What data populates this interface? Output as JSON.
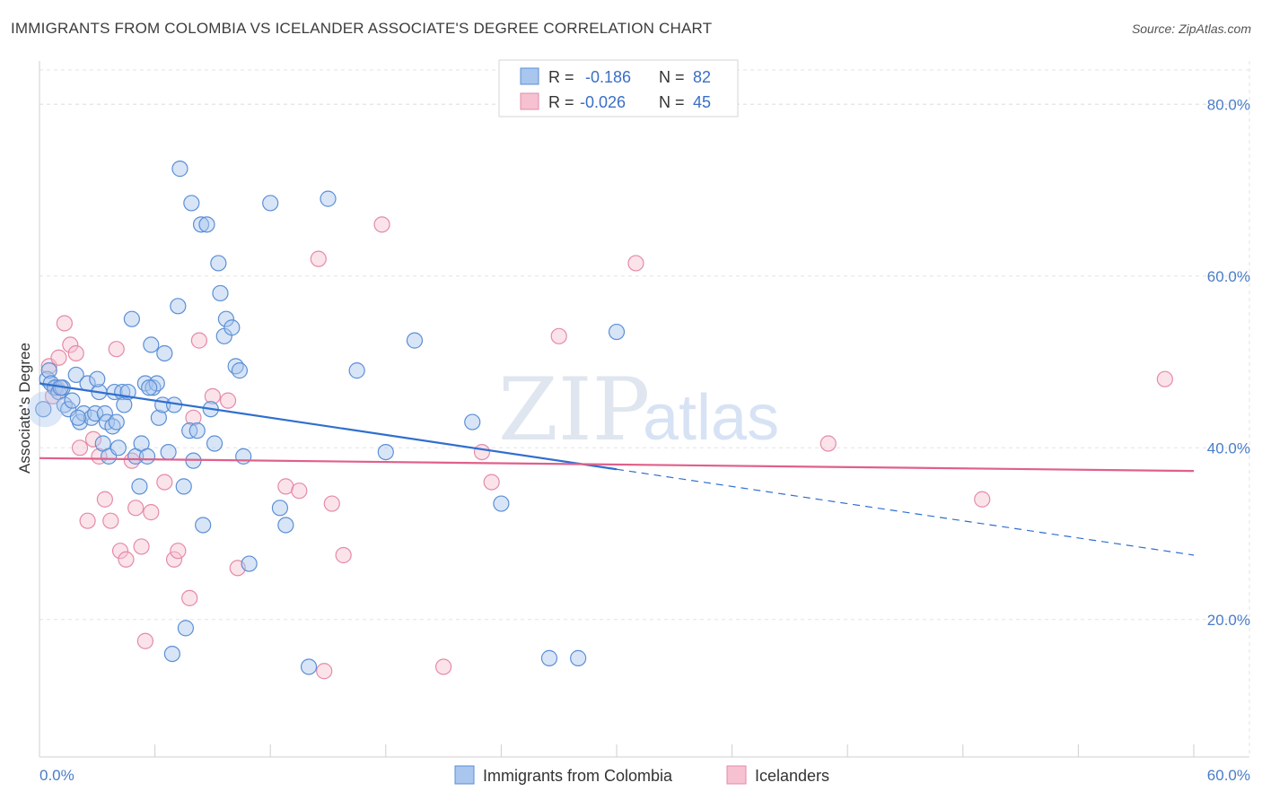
{
  "header": {
    "title": "IMMIGRANTS FROM COLOMBIA VS ICELANDER ASSOCIATE'S DEGREE CORRELATION CHART",
    "source": "Source: ZipAtlas.com"
  },
  "watermark": {
    "zip": "ZIP",
    "atlas": "atlas"
  },
  "colors": {
    "blue_fill": "#a9c6ee",
    "blue_stroke": "#5b8fd6",
    "blue_line": "#2f6fcf",
    "pink_fill": "#f6c1d1",
    "pink_stroke": "#e58aa8",
    "pink_line": "#e0608a",
    "grid": "#e3e3e3",
    "axis_label": "#4a7cc7"
  },
  "legend": {
    "rows": [
      {
        "r_label": "R =",
        "r_value": "-0.186",
        "n_label": "N =",
        "n_value": "82"
      },
      {
        "r_label": "R =",
        "r_value": "-0.026",
        "n_label": "N =",
        "n_value": "45"
      }
    ]
  },
  "chart_data": {
    "type": "scatter",
    "xlabel": "",
    "ylabel": "Associate's Degree",
    "xlim": [
      0,
      60
    ],
    "ylim": [
      4,
      84
    ],
    "x_tick_labels": [
      "0.0%",
      "60.0%"
    ],
    "y_ticks": [
      20,
      40,
      60,
      80
    ],
    "y_tick_labels": [
      "20.0%",
      "40.0%",
      "60.0%",
      "80.0%"
    ],
    "grid": true,
    "legend_position": "top-center",
    "series": [
      {
        "name": "Immigrants from Colombia",
        "color": "blue",
        "trend": {
          "x0": 0,
          "y0": 47.5,
          "x1": 30,
          "y1": 37.5,
          "dashed_to_x": 60,
          "dashed_to_y": 27.5
        },
        "points": [
          [
            0.2,
            44.5
          ],
          [
            0.4,
            48
          ],
          [
            0.5,
            49
          ],
          [
            0.6,
            47.5
          ],
          [
            0.8,
            47
          ],
          [
            1.0,
            46.5
          ],
          [
            1.2,
            47
          ],
          [
            1.3,
            45
          ],
          [
            1.5,
            44.5
          ],
          [
            1.7,
            45.5
          ],
          [
            1.9,
            48.5
          ],
          [
            2.1,
            43
          ],
          [
            2.3,
            44
          ],
          [
            2.5,
            47.5
          ],
          [
            2.7,
            43.5
          ],
          [
            2.9,
            44
          ],
          [
            3.1,
            46.5
          ],
          [
            3.3,
            40.5
          ],
          [
            3.4,
            44
          ],
          [
            3.5,
            43
          ],
          [
            3.6,
            39
          ],
          [
            3.8,
            42.5
          ],
          [
            3.9,
            46.5
          ],
          [
            4.1,
            40
          ],
          [
            4.3,
            46.5
          ],
          [
            4.4,
            45
          ],
          [
            4.6,
            46.5
          ],
          [
            4.8,
            55
          ],
          [
            5.0,
            39
          ],
          [
            5.2,
            35.5
          ],
          [
            5.3,
            40.5
          ],
          [
            5.5,
            47.5
          ],
          [
            5.6,
            39
          ],
          [
            5.8,
            52
          ],
          [
            5.9,
            47
          ],
          [
            6.1,
            47.5
          ],
          [
            6.2,
            43.5
          ],
          [
            6.4,
            45
          ],
          [
            6.5,
            51
          ],
          [
            6.7,
            39.5
          ],
          [
            6.9,
            16
          ],
          [
            7.0,
            45
          ],
          [
            7.2,
            56.5
          ],
          [
            7.3,
            72.5
          ],
          [
            7.5,
            35.5
          ],
          [
            7.6,
            19
          ],
          [
            7.8,
            42
          ],
          [
            7.9,
            68.5
          ],
          [
            8.0,
            38.5
          ],
          [
            8.2,
            42
          ],
          [
            8.4,
            66
          ],
          [
            8.5,
            31
          ],
          [
            8.7,
            66
          ],
          [
            8.9,
            44.5
          ],
          [
            9.1,
            40.5
          ],
          [
            9.3,
            61.5
          ],
          [
            9.4,
            58
          ],
          [
            9.6,
            53
          ],
          [
            9.7,
            55
          ],
          [
            10.0,
            54
          ],
          [
            10.2,
            49.5
          ],
          [
            10.4,
            49
          ],
          [
            10.6,
            39
          ],
          [
            10.9,
            26.5
          ],
          [
            12.0,
            68.5
          ],
          [
            12.5,
            33
          ],
          [
            12.8,
            31
          ],
          [
            14.0,
            14.5
          ],
          [
            15.0,
            69
          ],
          [
            16.5,
            49
          ],
          [
            18.0,
            39.5
          ],
          [
            19.5,
            52.5
          ],
          [
            22.5,
            43
          ],
          [
            24.0,
            33.5
          ],
          [
            26.5,
            15.5
          ],
          [
            28.0,
            15.5
          ],
          [
            30.0,
            53.5
          ],
          [
            3.0,
            48
          ],
          [
            2.0,
            43.5
          ],
          [
            1.1,
            47
          ],
          [
            5.7,
            47
          ],
          [
            4.0,
            43
          ]
        ]
      },
      {
        "name": "Icelanders",
        "color": "pink",
        "trend": {
          "x0": 0,
          "y0": 38.8,
          "x1": 60,
          "y1": 37.3
        },
        "points": [
          [
            0.5,
            49.5
          ],
          [
            0.7,
            46
          ],
          [
            0.9,
            47
          ],
          [
            1.0,
            50.5
          ],
          [
            1.3,
            54.5
          ],
          [
            1.6,
            52
          ],
          [
            1.9,
            51
          ],
          [
            2.1,
            40
          ],
          [
            2.5,
            31.5
          ],
          [
            2.8,
            41
          ],
          [
            3.1,
            39
          ],
          [
            3.4,
            34
          ],
          [
            3.7,
            31.5
          ],
          [
            4.0,
            51.5
          ],
          [
            4.2,
            28
          ],
          [
            4.5,
            27
          ],
          [
            4.8,
            38.5
          ],
          [
            5.0,
            33
          ],
          [
            5.3,
            28.5
          ],
          [
            5.5,
            17.5
          ],
          [
            5.8,
            32.5
          ],
          [
            6.5,
            36
          ],
          [
            7.0,
            27
          ],
          [
            7.2,
            28
          ],
          [
            7.8,
            22.5
          ],
          [
            8.0,
            43.5
          ],
          [
            8.3,
            52.5
          ],
          [
            9.0,
            46
          ],
          [
            9.8,
            45.5
          ],
          [
            10.3,
            26
          ],
          [
            12.8,
            35.5
          ],
          [
            13.5,
            35
          ],
          [
            14.5,
            62
          ],
          [
            14.8,
            14
          ],
          [
            15.2,
            33.5
          ],
          [
            15.8,
            27.5
          ],
          [
            17.8,
            66
          ],
          [
            21.0,
            14.5
          ],
          [
            23.0,
            39.5
          ],
          [
            23.5,
            36
          ],
          [
            27.0,
            53
          ],
          [
            31.0,
            61.5
          ],
          [
            41.0,
            40.5
          ],
          [
            49.0,
            34
          ],
          [
            58.5,
            48
          ]
        ]
      }
    ]
  }
}
